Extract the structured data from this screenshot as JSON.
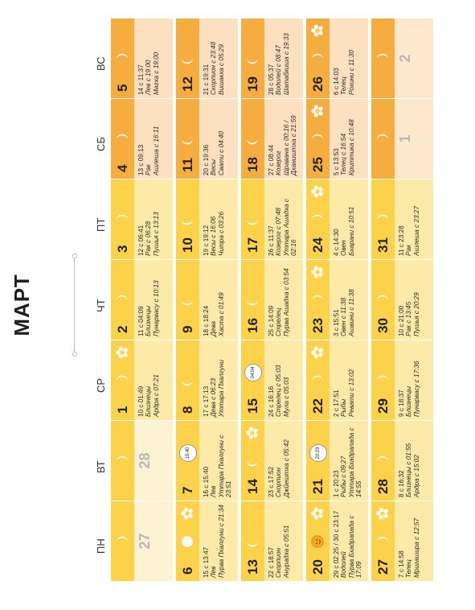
{
  "title": "МАРТ",
  "weekdays": [
    "ПН",
    "ВТ",
    "СР",
    "ЧТ",
    "ПТ",
    "СБ",
    "ВС"
  ],
  "colors": {
    "weekday_header": "#fcd24a",
    "weekend_header": "#f6ad3f",
    "weekday_cell": "#fde9a8",
    "weekend_cell": "#fde0bf"
  },
  "cells": [
    {
      "num": "27",
      "empty": true
    },
    {
      "num": "28",
      "empty": true
    },
    {
      "num": "1",
      "moon": "waxing",
      "flower": true,
      "l1": "10 с 01:49",
      "l2": "Близнецы",
      "l3": "Ардра с 07:21"
    },
    {
      "num": "2",
      "moon": "waxing",
      "l1": "11 с 04:09",
      "l2": "Близнецы",
      "l3": "Пунарвасу с 10:13"
    },
    {
      "num": "3",
      "moon": "waxing",
      "l1": "12 с 06:41",
      "l2": "Рак с 06:28",
      "l3": "Пушья с 13:13"
    },
    {
      "num": "4",
      "moon": "waxing",
      "l1": "13 с 09:13",
      "l2": "Рак",
      "l3": "Ашлеша с 16:11"
    },
    {
      "num": "5",
      "moon": "waxing",
      "l1": "14 с 11:37",
      "l2": "Лев с 19:00",
      "l3": "Магха с 19:00"
    },
    {
      "num": "6",
      "moon": "full",
      "flower": true,
      "l1": "15 с 13:47",
      "l2": "Лев",
      "l3": "Пурва Пхалгуни с 21:34"
    },
    {
      "num": "7",
      "moon": "badge",
      "badge": "15:40",
      "l1": "16 с 15:40",
      "l2": "Лев",
      "l3": "Уттара Пхалгуни с 23:51"
    },
    {
      "num": "8",
      "moon": "waning",
      "l1": "17 с 17:13",
      "l2": "Дева с 06:23",
      "l3": "Уттара Пхалгуни"
    },
    {
      "num": "9",
      "moon": "waning",
      "l1": "18 с 18:24",
      "l2": "Дева",
      "l3": "Хаста с 01:49"
    },
    {
      "num": "10",
      "moon": "waning",
      "l1": "19 с 19:12",
      "l2": "Весы с 16:06",
      "l3": "Читра с 03:26"
    },
    {
      "num": "11",
      "moon": "waning",
      "l1": "20 с 19:36",
      "l2": "Весы",
      "l3": "Свати с 04:40"
    },
    {
      "num": "12",
      "moon": "waning",
      "l1": "21 с 19:31",
      "l2": "Скорпион с 23:48",
      "l3": "Вишакха с 05:29"
    },
    {
      "num": "13",
      "moon": "waning",
      "l1": "22 с 18:57",
      "l2": "Скорпион",
      "l3": "Анурадха с 05:51"
    },
    {
      "num": "14",
      "moon": "waning",
      "flower": true,
      "l1": "23 с 17:52",
      "l2": "Скорпион",
      "l3": "Джйештха с 05:42"
    },
    {
      "num": "15",
      "moon": "waning",
      "badge": "04:04",
      "l1": "24 с 16:16",
      "l2": "Стрелец с 05:03",
      "l3": "Мула с 05:03"
    },
    {
      "num": "16",
      "moon": "waning",
      "l1": "25 с 14:09",
      "l2": "Стрелец",
      "l3": "Пурва Ашадха с 03:54"
    },
    {
      "num": "17",
      "moon": "waning",
      "l1": "26 с 11:37",
      "l2": "Козерог с 07:48",
      "l3": "Уттара Ашадха с 02:16"
    },
    {
      "num": "18",
      "moon": "waning",
      "l1": "27 с 08:44",
      "l2": "Козерог",
      "l3": "Шравана с 00:16 / Дхаништха с 21:59"
    },
    {
      "num": "19",
      "moon": "waning",
      "l1": "28 с 05:37",
      "l2": "Водолей с 08:47",
      "l3": "Шатабхиша с 19:33"
    },
    {
      "num": "20",
      "moon": "sun",
      "flower": true,
      "l1": "29 с 02:25 / 30 с 23:17",
      "l2": "Водолей",
      "l3": "Пурва Бхадрапада с 17:09"
    },
    {
      "num": "21",
      "moon": "badge",
      "badge": "20:23",
      "l1": "1 с 20:23",
      "l2": "Рыбы с 09:27",
      "l3": "Уттара Бхадрапада с 14:55"
    },
    {
      "num": "22",
      "moon": "waxing",
      "flower": true,
      "l1": "2 с 17:51",
      "l2": "Рыбы",
      "l3": "Ревати с 13:02"
    },
    {
      "num": "23",
      "moon": "waxing",
      "flower": true,
      "l1": "3 с 15:51",
      "l2": "Овен с 11:38",
      "l3": "Ашвини с 11:38"
    },
    {
      "num": "24",
      "moon": "waxing",
      "flower": true,
      "l1": "4 с 14:30",
      "l2": "Овен",
      "l3": "Бхарани с 10:51"
    },
    {
      "num": "25",
      "moon": "waxing",
      "flower": true,
      "l1": "5 с 13:53",
      "l2": "Телец с 16:54",
      "l3": "Криттика с 10:48"
    },
    {
      "num": "26",
      "moon": "waxing",
      "flower": true,
      "l1": "6 с 14:03",
      "l2": "Телец",
      "l3": "Рохини с 11:30"
    },
    {
      "num": "27",
      "moon": "waxing",
      "flower": true,
      "l1": "7 с 14:58",
      "l2": "Телец",
      "l3": "Мригашира с 12:57"
    },
    {
      "num": "28",
      "moon": "waxing",
      "l1": "8 с 16:32",
      "l2": "Близнецы с 01:55",
      "l3": "Ардра с 15:02"
    },
    {
      "num": "29",
      "moon": "waxing",
      "l1": "9 с 18:37",
      "l2": "Близнецы",
      "l3": "Пунарвасу с 17:36"
    },
    {
      "num": "30",
      "moon": "waxing",
      "l1": "10 с 21:00",
      "l2": "Рак с 13:45",
      "l3": "Пушья с 20:29"
    },
    {
      "num": "31",
      "moon": "waxing",
      "l1": "11 с 23:28",
      "l2": "Рак",
      "l3": "Ашлеша с 23:27"
    },
    {
      "num": "1",
      "empty": true
    },
    {
      "num": "2",
      "empty": true
    }
  ]
}
